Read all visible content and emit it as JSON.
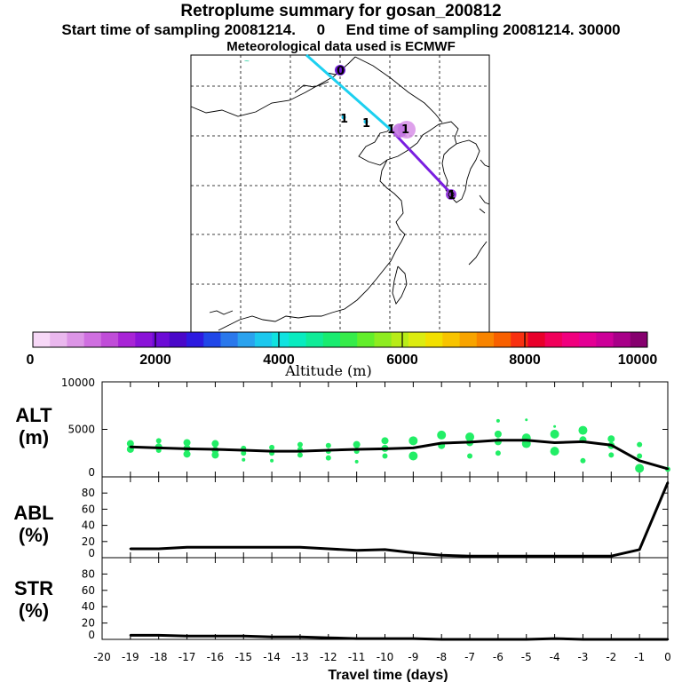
{
  "header": {
    "title": "Retroplume summary for gosan_200812",
    "subtitle": "Start time of sampling 20081214.     0     End time of sampling 20081214. 30000",
    "met_line": "Meteorological data used is ECMWF"
  },
  "map": {
    "station_marker": "1",
    "plume_labels": [
      "1",
      "1",
      "1",
      "1"
    ],
    "source_marker": "0"
  },
  "colorbar": {
    "label": "Altitude (m)",
    "ticks": [
      "0",
      "2000",
      "4000",
      "6000",
      "8000",
      "10000"
    ],
    "colors": [
      "#f7d8f7",
      "#eab8ee",
      "#dc95e6",
      "#cf6fe0",
      "#c04dd8",
      "#a824d6",
      "#8a13d8",
      "#6c0bd6",
      "#4a08c9",
      "#2d1ae0",
      "#2047e8",
      "#2a78ec",
      "#2aa2ee",
      "#1cc8ee",
      "#10e3e0",
      "#08ecc0",
      "#10ec98",
      "#18ec70",
      "#36ec4a",
      "#62ee2a",
      "#8eec20",
      "#b8ec18",
      "#dcec10",
      "#f2e000",
      "#f8c400",
      "#f8a400",
      "#f88400",
      "#f86000",
      "#f83010",
      "#e8002a",
      "#f0005a",
      "#f0007e",
      "#e40094",
      "#cc0098",
      "#a80088",
      "#86006e"
    ]
  },
  "chart_data": [
    {
      "type": "line",
      "panel": "ALT",
      "ylabel": "ALT (m)",
      "ylim": [
        0,
        10000
      ],
      "yticks": [
        "10000",
        "5000",
        "0"
      ],
      "x": [
        -19,
        -18,
        -17,
        -16,
        -15,
        -14,
        -13,
        -12,
        -11,
        -10,
        -9,
        -8,
        -7,
        -6,
        -5,
        -4,
        -3,
        -2,
        -1,
        0
      ],
      "values": [
        3150,
        3050,
        2950,
        2900,
        2800,
        2700,
        2700,
        2800,
        2900,
        2950,
        3050,
        3550,
        3650,
        3850,
        3850,
        3600,
        3700,
        3350,
        1700,
        850
      ],
      "scatter_color": "#22ee66",
      "scatter": [
        {
          "x": -19,
          "y": 3500,
          "r": 4
        },
        {
          "x": -19,
          "y": 2900,
          "r": 4
        },
        {
          "x": -18,
          "y": 3800,
          "r": 3
        },
        {
          "x": -18,
          "y": 3150,
          "r": 4
        },
        {
          "x": -18,
          "y": 2800,
          "r": 3
        },
        {
          "x": -17,
          "y": 3600,
          "r": 4
        },
        {
          "x": -17,
          "y": 3000,
          "r": 4
        },
        {
          "x": -17,
          "y": 2400,
          "r": 4
        },
        {
          "x": -16,
          "y": 3500,
          "r": 4
        },
        {
          "x": -16,
          "y": 2800,
          "r": 4
        },
        {
          "x": -16,
          "y": 2300,
          "r": 4
        },
        {
          "x": -15,
          "y": 3000,
          "r": 3
        },
        {
          "x": -15,
          "y": 2500,
          "r": 3
        },
        {
          "x": -15,
          "y": 1800,
          "r": 2
        },
        {
          "x": -14,
          "y": 3100,
          "r": 3
        },
        {
          "x": -14,
          "y": 2500,
          "r": 3
        },
        {
          "x": -14,
          "y": 1700,
          "r": 2
        },
        {
          "x": -13,
          "y": 3400,
          "r": 3
        },
        {
          "x": -13,
          "y": 2900,
          "r": 3
        },
        {
          "x": -13,
          "y": 2300,
          "r": 3
        },
        {
          "x": -12,
          "y": 3300,
          "r": 3
        },
        {
          "x": -12,
          "y": 2700,
          "r": 3
        },
        {
          "x": -12,
          "y": 2000,
          "r": 3
        },
        {
          "x": -11,
          "y": 3400,
          "r": 4
        },
        {
          "x": -11,
          "y": 2700,
          "r": 3
        },
        {
          "x": -11,
          "y": 1600,
          "r": 2
        },
        {
          "x": -10,
          "y": 3800,
          "r": 4
        },
        {
          "x": -10,
          "y": 3000,
          "r": 4
        },
        {
          "x": -10,
          "y": 2200,
          "r": 3
        },
        {
          "x": -9,
          "y": 3800,
          "r": 5
        },
        {
          "x": -9,
          "y": 2200,
          "r": 5
        },
        {
          "x": -8,
          "y": 4400,
          "r": 5
        },
        {
          "x": -8,
          "y": 3300,
          "r": 4
        },
        {
          "x": -7,
          "y": 4200,
          "r": 5
        },
        {
          "x": -7,
          "y": 3600,
          "r": 4
        },
        {
          "x": -7,
          "y": 2200,
          "r": 3
        },
        {
          "x": -6,
          "y": 5900,
          "r": 2
        },
        {
          "x": -6,
          "y": 4500,
          "r": 4
        },
        {
          "x": -6,
          "y": 3700,
          "r": 4
        },
        {
          "x": -6,
          "y": 2500,
          "r": 3
        },
        {
          "x": -5,
          "y": 6000,
          "r": 1.5
        },
        {
          "x": -5,
          "y": 4100,
          "r": 5
        },
        {
          "x": -5,
          "y": 3500,
          "r": 5
        },
        {
          "x": -4,
          "y": 5300,
          "r": 1.5
        },
        {
          "x": -4,
          "y": 4500,
          "r": 5
        },
        {
          "x": -4,
          "y": 2700,
          "r": 5
        },
        {
          "x": -3,
          "y": 4900,
          "r": 5
        },
        {
          "x": -3,
          "y": 3900,
          "r": 4
        },
        {
          "x": -3,
          "y": 1700,
          "r": 3
        },
        {
          "x": -2,
          "y": 4000,
          "r": 4
        },
        {
          "x": -2,
          "y": 3300,
          "r": 4
        },
        {
          "x": -2,
          "y": 2300,
          "r": 3
        },
        {
          "x": -1,
          "y": 3400,
          "r": 3
        },
        {
          "x": -1,
          "y": 2200,
          "r": 3
        },
        {
          "x": -1,
          "y": 900,
          "r": 5
        },
        {
          "x": 0,
          "y": 800,
          "r": 3
        }
      ]
    },
    {
      "type": "line",
      "panel": "ABL",
      "ylabel": "ABL (%)",
      "ylim": [
        0,
        100
      ],
      "yticks": [
        "0",
        "20",
        "40",
        "60",
        "80"
      ],
      "x": [
        -19,
        -18,
        -17,
        -16,
        -15,
        -14,
        -13,
        -12,
        -11,
        -10,
        -9,
        -8,
        -7,
        -6,
        -5,
        -4,
        -3,
        -2,
        -1,
        0
      ],
      "values": [
        11,
        11,
        13,
        13,
        13,
        13,
        13,
        11,
        9,
        10,
        6,
        3,
        2,
        2,
        2,
        2,
        2,
        2,
        10,
        93
      ]
    },
    {
      "type": "line",
      "panel": "STR",
      "ylabel": "STR (%)",
      "ylim": [
        0,
        100
      ],
      "yticks": [
        "0",
        "20",
        "40",
        "60",
        "80"
      ],
      "x": [
        -19,
        -18,
        -17,
        -16,
        -15,
        -14,
        -13,
        -12,
        -11,
        -10,
        -9,
        -8,
        -7,
        -6,
        -5,
        -4,
        -3,
        -2,
        -1,
        0
      ],
      "values": [
        5,
        5,
        4,
        4,
        4,
        3,
        3,
        2,
        1,
        1,
        1,
        0,
        0,
        0,
        0,
        1,
        0,
        0,
        0,
        0
      ],
      "xlabel": "Travel time (days)",
      "xticks": [
        "-20",
        "-19",
        "-18",
        "-17",
        "-16",
        "-15",
        "-14",
        "-13",
        "-12",
        "-11",
        "-10",
        "-9",
        "-8",
        "-7",
        "-6",
        "-5",
        "-4",
        "-3",
        "-2",
        "-1",
        "0"
      ]
    }
  ],
  "panel_labels": {
    "alt_top": "ALT",
    "alt_bottom": "(m)",
    "abl_top": "ABL",
    "abl_bottom": "(%)",
    "str_top": "STR",
    "str_bottom": "(%)"
  }
}
